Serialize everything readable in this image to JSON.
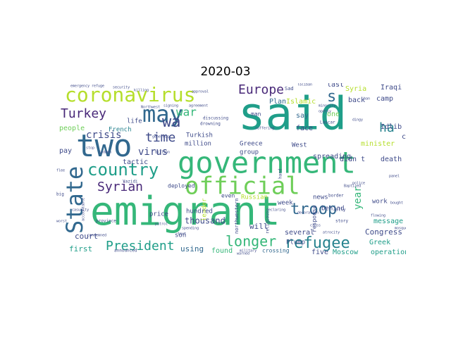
{
  "title": "2020-03",
  "colors": {
    "c0": "#440154",
    "c1": "#482878",
    "c2": "#3e4a89",
    "c3": "#31688e",
    "c4": "#26828e",
    "c5": "#1f9e89",
    "c6": "#35b779",
    "c7": "#6ece58",
    "c8": "#b5de2b",
    "c9": "#fde725"
  },
  "words": [
    {
      "text": "said",
      "color": "c5"
    },
    {
      "text": "emigrant",
      "color": "c6"
    },
    {
      "text": "government",
      "color": "c6"
    },
    {
      "text": "two",
      "color": "c3"
    },
    {
      "text": "coronavirus",
      "color": "c8"
    },
    {
      "text": "official",
      "color": "c7"
    },
    {
      "text": "State",
      "color": "c3"
    },
    {
      "text": "may",
      "color": "c3"
    },
    {
      "text": "country",
      "color": "c5"
    },
    {
      "text": "President",
      "color": "c5"
    },
    {
      "text": "refugee",
      "color": "c4"
    },
    {
      "text": "longer",
      "color": "c6"
    },
    {
      "text": "troop",
      "color": "c3"
    },
    {
      "text": "Syrian",
      "color": "c1"
    },
    {
      "text": "Turkey",
      "color": "c1"
    },
    {
      "text": "Europe",
      "color": "c1"
    },
    {
      "text": "time",
      "color": "c2"
    },
    {
      "text": "war",
      "color": "c6"
    },
    {
      "text": "wa",
      "color": "c2"
    },
    {
      "text": "ha",
      "color": "c4"
    },
    {
      "text": "s",
      "color": "c3"
    },
    {
      "text": "year",
      "color": "c6"
    },
    {
      "text": "virus",
      "color": "c2"
    },
    {
      "text": "crisis",
      "color": "c2"
    },
    {
      "text": "thousand",
      "color": "c2"
    },
    {
      "text": "court",
      "color": "c2"
    },
    {
      "text": "first",
      "color": "c5"
    },
    {
      "text": "people",
      "color": "c7"
    },
    {
      "text": "Greece",
      "color": "c2"
    },
    {
      "text": "found",
      "color": "c6"
    },
    {
      "text": "using",
      "color": "c3"
    },
    {
      "text": "will",
      "color": "c2"
    },
    {
      "text": "son",
      "color": "c2"
    },
    {
      "text": "leader",
      "color": "c8"
    },
    {
      "text": "hundred",
      "color": "c2"
    },
    {
      "text": "tactic",
      "color": "c2"
    },
    {
      "text": "Turkish",
      "color": "c2"
    },
    {
      "text": "million",
      "color": "c2"
    },
    {
      "text": "French",
      "color": "c4"
    },
    {
      "text": "pay",
      "color": "c2"
    },
    {
      "text": "news",
      "color": "c2"
    },
    {
      "text": "didn t",
      "color": "c2"
    },
    {
      "text": "behind",
      "color": "c2"
    },
    {
      "text": "several",
      "color": "c2"
    },
    {
      "text": "five",
      "color": "c2"
    },
    {
      "text": "Moscow",
      "color": "c5"
    },
    {
      "text": "Plump",
      "color": "c2"
    },
    {
      "text": "crossing",
      "color": "c3"
    },
    {
      "text": "operation",
      "color": "c5"
    },
    {
      "text": "Congress",
      "color": "c2"
    },
    {
      "text": "message",
      "color": "c5"
    },
    {
      "text": "Greek",
      "color": "c5"
    },
    {
      "text": "work",
      "color": "c2"
    },
    {
      "text": "death",
      "color": "c2"
    },
    {
      "text": "city",
      "color": "c2"
    },
    {
      "text": "Idlib",
      "color": "c2"
    },
    {
      "text": "camp",
      "color": "c2"
    },
    {
      "text": "Iraqi",
      "color": "c2"
    },
    {
      "text": "Syria",
      "color": "c8"
    },
    {
      "text": "last",
      "color": "c2"
    },
    {
      "text": "back",
      "color": "c2"
    },
    {
      "text": "one",
      "color": "c7"
    },
    {
      "text": "say",
      "color": "c3"
    },
    {
      "text": "face",
      "color": "c2"
    },
    {
      "text": "Islamic",
      "color": "c8"
    },
    {
      "text": "Plan",
      "color": "c3"
    },
    {
      "text": "group",
      "color": "c2"
    },
    {
      "text": "West",
      "color": "c2"
    },
    {
      "text": "spreading",
      "color": "c2"
    },
    {
      "text": "minister",
      "color": "c8"
    },
    {
      "text": "Russian",
      "color": "c8"
    },
    {
      "text": "week",
      "color": "c2"
    },
    {
      "text": "response",
      "color": "c2"
    },
    {
      "text": "even",
      "color": "c2"
    },
    {
      "text": "deployed",
      "color": "c2"
    },
    {
      "text": "price",
      "color": "c2"
    },
    {
      "text": "life",
      "color": "c2"
    },
    {
      "text": "man",
      "color": "c2"
    },
    {
      "text": "Sad",
      "color": "c2"
    },
    {
      "text": "Lascar",
      "color": "c2"
    },
    {
      "text": "discussing",
      "color": "c2"
    },
    {
      "text": "drowning",
      "color": "c2"
    },
    {
      "text": "northwestern",
      "color": "c2"
    },
    {
      "text": "Yazidi",
      "color": "c2"
    },
    {
      "text": "announced",
      "color": "c2"
    },
    {
      "text": "province",
      "color": "c2"
    },
    {
      "text": "religious",
      "color": "c2"
    },
    {
      "text": "ally",
      "color": "c2"
    },
    {
      "text": "story",
      "color": "c2"
    },
    {
      "text": "border",
      "color": "c2"
    },
    {
      "text": "hand",
      "color": "c2"
    },
    {
      "text": "declaring",
      "color": "c2"
    },
    {
      "text": "decoration",
      "color": "c2"
    },
    {
      "text": "Baptized",
      "color": "c2"
    },
    {
      "text": "police",
      "color": "c2"
    },
    {
      "text": "ban",
      "color": "c2"
    },
    {
      "text": "minority",
      "color": "c2"
    },
    {
      "text": "openly",
      "color": "c2"
    },
    {
      "text": "dingy",
      "color": "c2"
    },
    {
      "text": "agreement",
      "color": "c2"
    },
    {
      "text": "signing",
      "color": "c2"
    },
    {
      "text": "killing",
      "color": "c2"
    },
    {
      "text": "security",
      "color": "c2"
    },
    {
      "text": "emergency",
      "color": "c2"
    },
    {
      "text": "approval",
      "color": "c2"
    },
    {
      "text": "Taliban",
      "color": "c2"
    },
    {
      "text": "cross",
      "color": "c2"
    },
    {
      "text": "military",
      "color": "c2"
    },
    {
      "text": "atrocity",
      "color": "c2"
    },
    {
      "text": "warned",
      "color": "c2"
    },
    {
      "text": "accountable",
      "color": "c2"
    },
    {
      "text": "condemned",
      "color": "c2"
    },
    {
      "text": "casualty",
      "color": "c2"
    },
    {
      "text": "stop",
      "color": "c2"
    },
    {
      "text": "text",
      "color": "c2"
    },
    {
      "text": "patrol",
      "color": "c2"
    },
    {
      "text": "suffering",
      "color": "c2"
    },
    {
      "text": "billion",
      "color": "c2"
    },
    {
      "text": "generous",
      "color": "c2"
    },
    {
      "text": "Northwest",
      "color": "c2"
    },
    {
      "text": "worst",
      "color": "c2"
    },
    {
      "text": "big",
      "color": "c2"
    },
    {
      "text": "refuge",
      "color": "c2"
    },
    {
      "text": "sudden",
      "color": "c2"
    },
    {
      "text": "spending",
      "color": "c2"
    },
    {
      "text": "flee",
      "color": "c2"
    },
    {
      "text": "panel",
      "color": "c2"
    },
    {
      "text": "bought",
      "color": "c2"
    },
    {
      "text": "flowing",
      "color": "c2"
    },
    {
      "text": "mosque",
      "color": "c2"
    }
  ]
}
